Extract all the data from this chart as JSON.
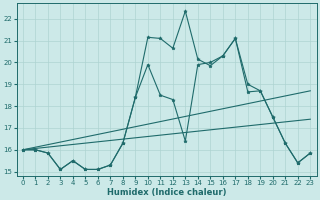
{
  "xlabel": "Humidex (Indice chaleur)",
  "bg_color": "#cce9e8",
  "line_color": "#1f6b6b",
  "grid_color": "#aed4d2",
  "xlim": [
    -0.5,
    23.5
  ],
  "ylim": [
    14.8,
    22.7
  ],
  "xticks": [
    0,
    1,
    2,
    3,
    4,
    5,
    6,
    7,
    8,
    9,
    10,
    11,
    12,
    13,
    14,
    15,
    16,
    17,
    18,
    19,
    20,
    21,
    22,
    23
  ],
  "yticks": [
    15,
    16,
    17,
    18,
    19,
    20,
    21,
    22
  ],
  "curve1_x": [
    0,
    1,
    2,
    3,
    4,
    5,
    6,
    7,
    8,
    9,
    10,
    11,
    12,
    13,
    14,
    15,
    16,
    17,
    18,
    19,
    20,
    21,
    22,
    23
  ],
  "curve1_y": [
    16.0,
    16.0,
    15.85,
    15.1,
    15.5,
    15.1,
    15.1,
    15.3,
    16.3,
    18.4,
    19.9,
    18.5,
    18.3,
    16.4,
    19.9,
    20.0,
    20.3,
    21.1,
    18.65,
    18.7,
    17.5,
    16.3,
    15.4,
    15.85
  ],
  "curve2_x": [
    0,
    1,
    2,
    3,
    4,
    5,
    6,
    7,
    8,
    9,
    10,
    11,
    12,
    13,
    14,
    15,
    16,
    17,
    18,
    19,
    20,
    21,
    22,
    23
  ],
  "curve2_y": [
    16.0,
    16.0,
    15.85,
    15.1,
    15.5,
    15.1,
    15.1,
    15.3,
    16.3,
    18.4,
    21.15,
    21.1,
    20.65,
    22.35,
    20.15,
    19.85,
    20.3,
    21.1,
    19.0,
    18.7,
    17.5,
    16.3,
    15.4,
    15.85
  ],
  "trend1_x": [
    0,
    23
  ],
  "trend1_y": [
    16.0,
    18.7
  ],
  "trend2_x": [
    0,
    23
  ],
  "trend2_y": [
    16.0,
    17.4
  ]
}
